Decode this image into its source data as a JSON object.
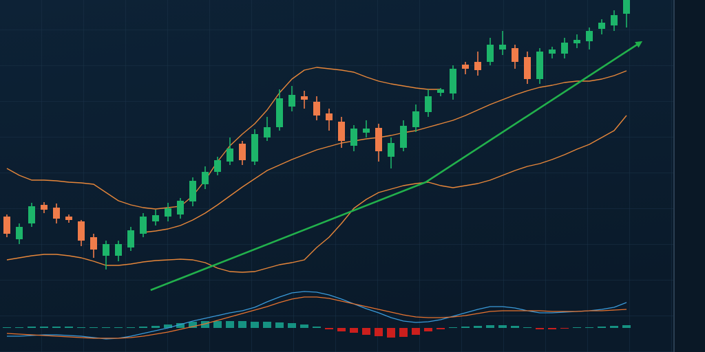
{
  "chart_data": [
    {
      "type": "candlestick",
      "ylim": [
        0,
        440
      ],
      "up_color": "#1db56a",
      "down_color": "#f07c4a",
      "open": [
        125,
        92,
        115,
        142,
        138,
        125,
        118,
        95,
        68,
        68,
        80,
        100,
        118,
        125,
        128,
        147,
        172,
        190,
        205,
        231,
        205,
        240,
        255,
        285,
        300,
        292,
        275,
        263,
        228,
        247,
        254,
        212,
        225,
        255,
        277,
        305,
        304,
        346,
        350,
        350,
        368,
        370,
        357,
        325,
        362,
        362,
        377,
        380,
        398,
        403,
        420
      ],
      "close": [
        100,
        110,
        140,
        135,
        122,
        120,
        90,
        77,
        85,
        85,
        105,
        125,
        127,
        137,
        148,
        177,
        190,
        207,
        224,
        207,
        245,
        255,
        297,
        302,
        295,
        272,
        265,
        235,
        253,
        253,
        220,
        232,
        257,
        278,
        300,
        310,
        340,
        340,
        338,
        375,
        375,
        350,
        325,
        365,
        368,
        378,
        382,
        395,
        407,
        418,
        440
      ],
      "high": [
        128,
        115,
        145,
        146,
        144,
        128,
        120,
        100,
        90,
        90,
        110,
        130,
        135,
        145,
        152,
        182,
        198,
        212,
        240,
        235,
        252,
        270,
        310,
        315,
        308,
        300,
        282,
        270,
        258,
        265,
        260,
        240,
        265,
        288,
        310,
        312,
        345,
        350,
        365,
        385,
        395,
        375,
        365,
        370,
        372,
        385,
        390,
        400,
        412,
        425,
        440
      ],
      "low": [
        95,
        85,
        110,
        130,
        115,
        116,
        82,
        65,
        48,
        60,
        75,
        95,
        112,
        118,
        122,
        140,
        165,
        185,
        200,
        200,
        200,
        235,
        250,
        278,
        282,
        265,
        250,
        225,
        220,
        240,
        205,
        195,
        220,
        248,
        270,
        300,
        295,
        332,
        330,
        345,
        360,
        340,
        318,
        318,
        355,
        355,
        370,
        368,
        390,
        395,
        400
      ],
      "lines": [
        {
          "color": "#e8873a",
          "values": [
            195,
            185,
            178,
            178,
            177,
            175,
            174,
            172,
            160,
            148,
            142,
            138,
            136,
            138,
            140,
            155,
            178,
            205,
            228,
            245,
            260,
            280,
            305,
            325,
            338,
            342,
            340,
            338,
            335,
            328,
            322,
            318,
            315,
            312,
            310,
            310,
            null,
            null,
            null,
            null,
            null,
            null,
            null,
            null,
            null,
            null,
            null,
            null,
            null,
            null,
            null
          ]
        },
        {
          "color": "#e8873a",
          "values": [
            null,
            null,
            null,
            null,
            null,
            null,
            null,
            null,
            null,
            null,
            null,
            102,
            104,
            107,
            112,
            120,
            130,
            142,
            155,
            168,
            180,
            192,
            200,
            208,
            215,
            222,
            227,
            232,
            235,
            238,
            240,
            243,
            247,
            250,
            255,
            260,
            265,
            272,
            280,
            288,
            295,
            302,
            308,
            313,
            316,
            320,
            322,
            322,
            325,
            330,
            337
          ]
        },
        {
          "color": "#e8873a",
          "values": [
            62,
            65,
            68,
            70,
            70,
            68,
            65,
            60,
            54,
            54,
            56,
            59,
            61,
            62,
            63,
            62,
            58,
            50,
            45,
            44,
            45,
            50,
            55,
            58,
            62,
            80,
            95,
            115,
            137,
            150,
            160,
            165,
            170,
            173,
            175,
            170,
            167,
            170,
            173,
            178,
            185,
            192,
            198,
            202,
            208,
            215,
            223,
            230,
            240,
            250,
            272
          ]
        }
      ],
      "trend": {
        "color": "#22b14c",
        "x": [
          11.6,
          33.8,
          51.1
        ],
        "values": [
          18,
          175,
          378
        ]
      }
    },
    {
      "type": "macd",
      "ylim": [
        -23,
        57
      ],
      "histogram": {
        "up_color": "#17a08c",
        "down_color": "#e0201c",
        "values": [
          1,
          1,
          2,
          2,
          2,
          2,
          1,
          1,
          1,
          1,
          1,
          2,
          3,
          5,
          7,
          9,
          10,
          10,
          10,
          10,
          9,
          9,
          8,
          7,
          5,
          2,
          -2,
          -5,
          -7,
          -10,
          -12,
          -14,
          -13,
          -10,
          -5,
          -2,
          1,
          2,
          3,
          4,
          4,
          3,
          1,
          -2,
          -2,
          -1,
          1,
          1,
          2,
          3,
          4
        ]
      },
      "lines": [
        {
          "color": "#3a9ad9",
          "values": [
            -12,
            -12,
            -11,
            -10,
            -10,
            -11,
            -12,
            -14,
            -16,
            -15,
            -12,
            -8,
            -4,
            0,
            5,
            10,
            14,
            18,
            22,
            25,
            30,
            38,
            45,
            51,
            53,
            52,
            48,
            42,
            35,
            28,
            22,
            15,
            10,
            8,
            9,
            12,
            17,
            22,
            27,
            31,
            31,
            29,
            25,
            22,
            22,
            23,
            24,
            25,
            27,
            30,
            37
          ]
        },
        {
          "color": "#e8732f",
          "values": [
            -8,
            -9,
            -10,
            -11,
            -12,
            -13,
            -14,
            -15,
            -15,
            -15,
            -14,
            -12,
            -9,
            -6,
            -2,
            2,
            6,
            11,
            16,
            21,
            26,
            31,
            37,
            42,
            45,
            45,
            43,
            39,
            35,
            31,
            27,
            23,
            19,
            16,
            15,
            15,
            16,
            18,
            21,
            24,
            25,
            25,
            25,
            25,
            24,
            24,
            24,
            25,
            25,
            26,
            27
          ]
        }
      ]
    }
  ]
}
